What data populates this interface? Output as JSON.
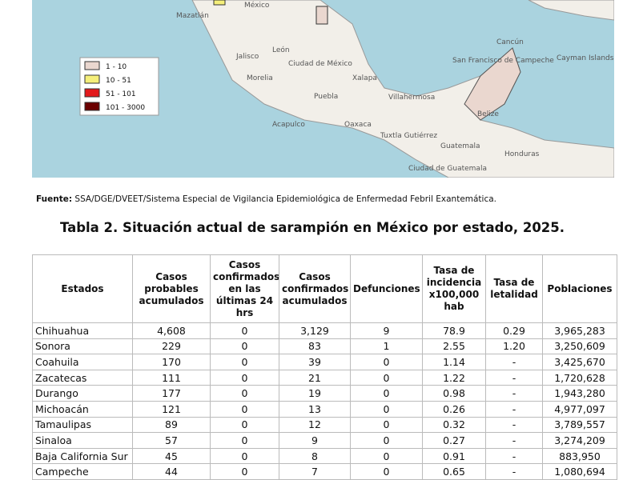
{
  "map": {
    "labels": [
      "Mazatlán",
      "México",
      "Jalisco",
      "León",
      "Ciudad de México",
      "Morelia",
      "Xalapa",
      "Puebla",
      "Acapulco",
      "Oaxaca",
      "Tuxtla Gutiérrez",
      "Villahermosa",
      "Cancún",
      "San Francisco de Campeche",
      "Belize",
      "Guatemala",
      "Honduras",
      "Cayman Islands",
      "Ciudad de Guatemala"
    ],
    "legend": [
      "1 - 10",
      "10 - 51",
      "51 - 101",
      "101 - 3000"
    ]
  },
  "source": {
    "label": "Fuente:",
    "text": "SSA/DGE/DVEET/Sistema Especial de Vigilancia Epidemiológica de Enfermedad Febril Exantemática."
  },
  "title": "Tabla 2. Situación actual de sarampión en México por estado, 2025.",
  "table": {
    "header": [
      "Estados",
      "Casos probables acumulados",
      "Casos confirmados en las últimas 24 hrs",
      "Casos confirmados acumulados",
      "Defunciones",
      "Tasa de incidencia x100,000 hab",
      "Tasa de letalidad",
      "Poblaciones"
    ],
    "rows": [
      [
        "Chihuahua",
        "4,608",
        "0",
        "3,129",
        "9",
        "78.9",
        "0.29",
        "3,965,283"
      ],
      [
        "Sonora",
        "229",
        "0",
        "83",
        "1",
        "2.55",
        "1.20",
        "3,250,609"
      ],
      [
        "Coahuila",
        "170",
        "0",
        "39",
        "0",
        "1.14",
        "-",
        "3,425,670"
      ],
      [
        "Zacatecas",
        "111",
        "0",
        "21",
        "0",
        "1.22",
        "-",
        "1,720,628"
      ],
      [
        "Durango",
        "177",
        "0",
        "19",
        "0",
        "0.98",
        "-",
        "1,943,280"
      ],
      [
        "Michoacán",
        "121",
        "0",
        "13",
        "0",
        "0.26",
        "-",
        "4,977,097"
      ],
      [
        "Tamaulipas",
        "89",
        "0",
        "12",
        "0",
        "0.32",
        "-",
        "3,789,557"
      ],
      [
        "Sinaloa",
        "57",
        "0",
        "9",
        "0",
        "0.27",
        "-",
        "3,274,209"
      ],
      [
        "Baja California Sur",
        "45",
        "0",
        "8",
        "0",
        "0.91",
        "-",
        "883,950"
      ],
      [
        "Campeche",
        "44",
        "0",
        "7",
        "0",
        "0.65",
        "-",
        "1,080,694"
      ]
    ]
  }
}
